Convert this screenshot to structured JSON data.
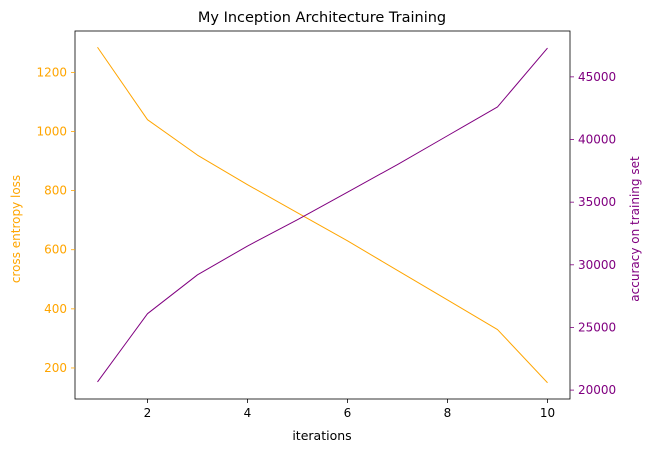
{
  "chart_data": {
    "type": "line",
    "title": "My Inception Architecture Training",
    "xlabel": "iterations",
    "ylabel_left": "cross entropy loss",
    "ylabel_right": "accuracy on training set",
    "x": [
      1,
      2,
      3,
      4,
      5,
      6,
      7,
      8,
      9,
      10
    ],
    "xlim": [
      0.55,
      10.45
    ],
    "xticks": [
      2,
      4,
      6,
      8,
      10
    ],
    "series": [
      {
        "axis": "left",
        "color": "#ffa500",
        "values": [
          1285,
          1040,
          920,
          820,
          725,
          630,
          530,
          430,
          330,
          150
        ]
      },
      {
        "axis": "right",
        "color": "#800080",
        "values": [
          20650,
          26100,
          29200,
          31500,
          33600,
          35800,
          38000,
          40300,
          42600,
          47300
        ]
      }
    ],
    "ylim_left": [
      95,
      1340
    ],
    "yticks_left": [
      200,
      400,
      600,
      800,
      1000,
      1200
    ],
    "ylim_right": [
      19290,
      48660
    ],
    "yticks_right": [
      20000,
      25000,
      30000,
      35000,
      40000,
      45000
    ],
    "left_axis_color": "#ffa500",
    "right_axis_color": "#800080",
    "grid": false,
    "legend": "none"
  }
}
